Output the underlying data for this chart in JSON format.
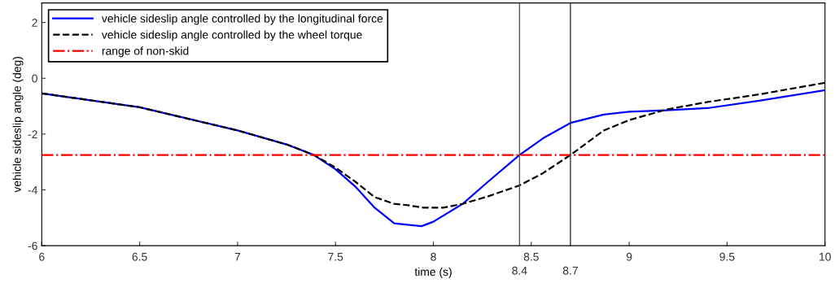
{
  "chart_data": {
    "type": "line",
    "xlabel": "time (s)",
    "ylabel": "vehicle sideslip angle (deg)",
    "xlim": [
      6,
      10
    ],
    "xticks": [
      6,
      6.5,
      7,
      7.5,
      8,
      8.5,
      9,
      9.5,
      10
    ],
    "ylim": [
      -6,
      2.7
    ],
    "yticks": [
      -6,
      -4,
      -2,
      0,
      2
    ],
    "grid": false,
    "legend": "top left",
    "marker": "none",
    "series": [
      {
        "name": "vehicle sideslip angle controlled by the longitudinal force",
        "color": "#0000ff",
        "line_style": "solid",
        "x": [
          6,
          6.5,
          7,
          7.25,
          7.39,
          7.5,
          7.6,
          7.7,
          7.8,
          7.94,
          8.0,
          8.15,
          8.28,
          8.44,
          8.56,
          8.7,
          8.87,
          9.0,
          9.19,
          9.4,
          9.67,
          10
        ],
        "values": [
          -0.54,
          -1.04,
          -1.87,
          -2.37,
          -2.75,
          -3.26,
          -3.87,
          -4.64,
          -5.2,
          -5.3,
          -5.14,
          -4.5,
          -3.7,
          -2.75,
          -2.15,
          -1.6,
          -1.3,
          -1.2,
          -1.15,
          -1.07,
          -0.8,
          -0.43
        ]
      },
      {
        "name": "vehicle sideslip angle controlled by the wheel torque",
        "color": "#000000",
        "line_style": "dashed",
        "x": [
          6,
          6.5,
          7,
          7.25,
          7.39,
          7.5,
          7.6,
          7.7,
          7.8,
          7.87,
          7.95,
          8.05,
          8.15,
          8.28,
          8.44,
          8.56,
          8.7,
          8.87,
          9.0,
          9.19,
          9.4,
          9.67,
          10
        ],
        "values": [
          -0.54,
          -1.04,
          -1.87,
          -2.37,
          -2.75,
          -3.2,
          -3.7,
          -4.26,
          -4.5,
          -4.55,
          -4.64,
          -4.64,
          -4.5,
          -4.23,
          -3.84,
          -3.4,
          -2.75,
          -1.87,
          -1.5,
          -1.12,
          -0.85,
          -0.57,
          -0.16
        ]
      }
    ],
    "ref_lines": [
      {
        "axis": "y",
        "value": -2.75,
        "label": "range of non-skid",
        "color": "#ff0000",
        "line_style": "dashdot"
      },
      {
        "axis": "x",
        "value": 8.44,
        "label": "8.4",
        "color": "#555555",
        "line_style": "solid"
      },
      {
        "axis": "x",
        "value": 8.7,
        "label": "8.7",
        "color": "#333333",
        "line_style": "solid"
      }
    ]
  }
}
